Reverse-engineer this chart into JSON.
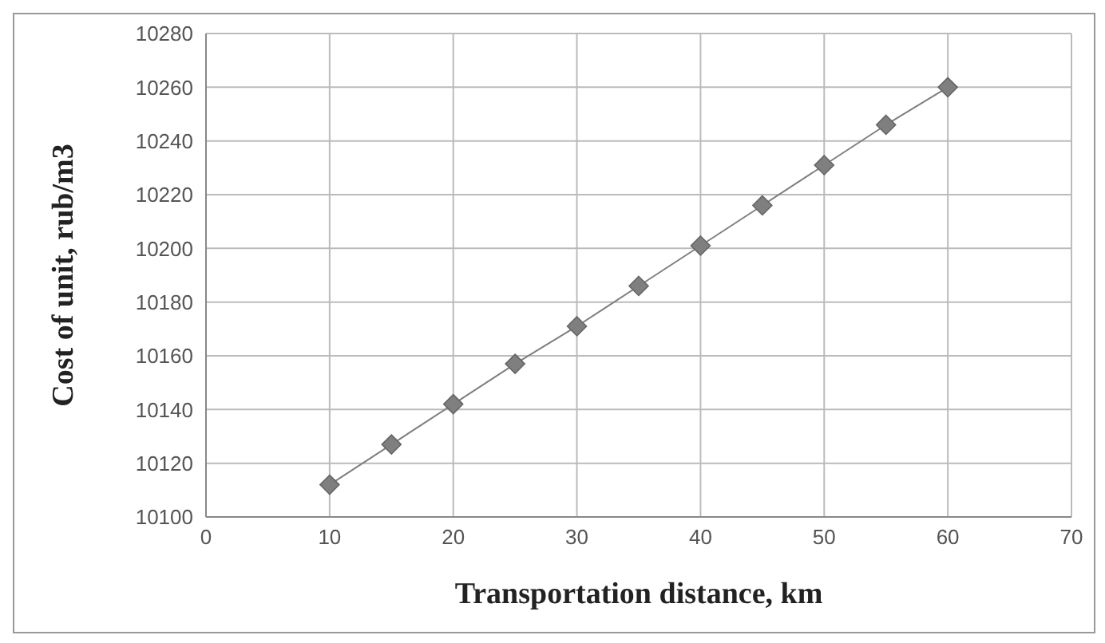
{
  "chart_data": {
    "type": "line",
    "xlabel": "Transportation distance, km",
    "ylabel": "Cost of unit, rub/m3",
    "x": [
      10,
      15,
      20,
      25,
      30,
      35,
      40,
      45,
      50,
      55,
      60
    ],
    "series": [
      {
        "color": "#7f7f7f",
        "values": [
          10112,
          10127,
          10142,
          10157,
          10171,
          10186,
          10201,
          10216,
          10231,
          10246,
          10260
        ]
      }
    ],
    "xlim": [
      0,
      70
    ],
    "xticks": [
      0,
      10,
      20,
      30,
      40,
      50,
      60,
      70
    ],
    "ylim": [
      10100,
      10280
    ],
    "yticks": [
      10100,
      10120,
      10140,
      10160,
      10180,
      10200,
      10220,
      10240,
      10260,
      10280
    ],
    "grid": true,
    "marker": "diamond",
    "line_style": "solid"
  }
}
